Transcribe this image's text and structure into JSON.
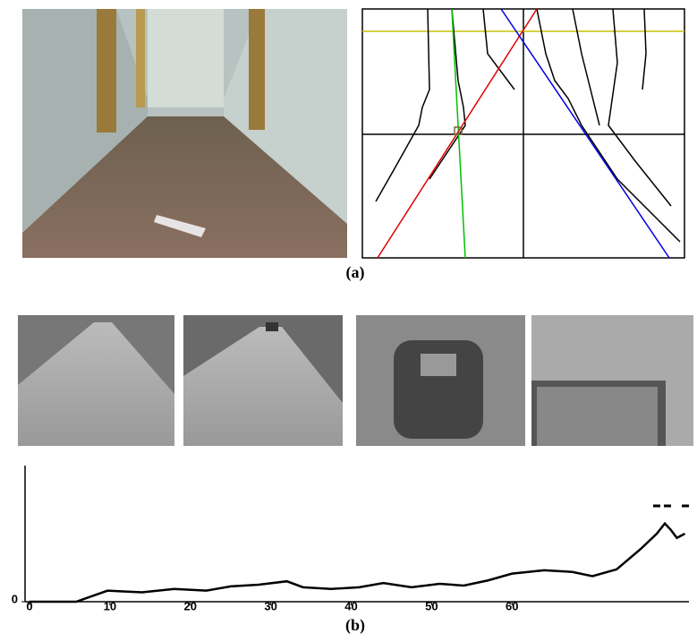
{
  "figure": {
    "caption_a": "(a)",
    "caption_b": "(b)"
  },
  "chart_data": {
    "type": "line",
    "x": [
      0,
      5.8,
      9.7,
      14,
      18,
      22,
      25,
      28.5,
      32,
      34,
      37.5,
      41,
      44,
      47.5,
      51,
      54,
      57,
      60,
      64,
      67.5,
      70,
      73,
      76,
      78,
      79,
      79.7,
      80.5,
      81.5
    ],
    "series": [
      {
        "color": "#000000",
        "values": [
          0,
          0,
          13,
          11,
          15,
          13,
          18,
          20,
          24,
          17,
          15,
          17,
          22,
          17,
          21,
          19,
          25,
          33,
          37,
          35,
          30,
          38,
          62,
          80,
          92,
          85,
          75,
          80
        ]
      }
    ],
    "xlim": [
      0,
      82
    ],
    "ylim": [
      0,
      160
    ],
    "xticks": [
      0,
      10,
      20,
      30,
      40,
      50,
      60
    ],
    "yticks": [
      0
    ]
  }
}
